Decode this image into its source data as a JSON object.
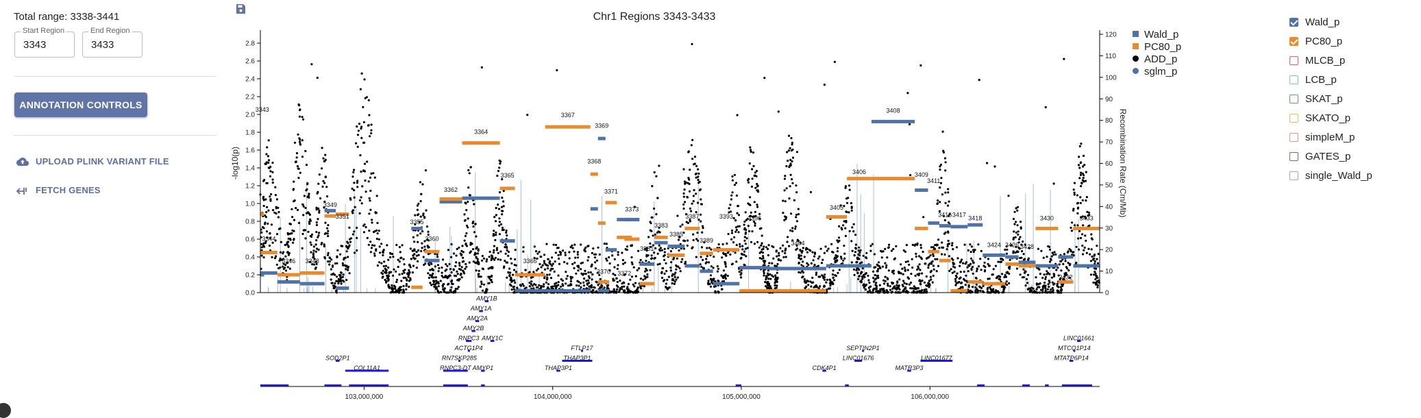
{
  "left_panel": {
    "range_text": "Total range: 3338-3441",
    "start_region": {
      "label": "Start Region",
      "value": "3343"
    },
    "end_region": {
      "label": "End Region",
      "value": "3433"
    },
    "annotation_button": "ANNOTATION CONTROLS",
    "upload_button": "UPLOAD PLINK VARIANT FILE",
    "fetch_button": "FETCH GENES"
  },
  "checklist": [
    {
      "label": "Wald_p",
      "checked": true,
      "color": "#4e73a8"
    },
    {
      "label": "PC80_p",
      "checked": true,
      "color": "#e98a2e"
    },
    {
      "label": "MLCB_p",
      "checked": false,
      "color": "#e06666"
    },
    {
      "label": "LCB_p",
      "checked": false,
      "color": "#76c7c0"
    },
    {
      "label": "SKAT_p",
      "checked": false,
      "color": "#5aa85a"
    },
    {
      "label": "SKATO_p",
      "checked": false,
      "color": "#e0c44a"
    },
    {
      "label": "simpleM_p",
      "checked": false,
      "color": "#d99a9a"
    },
    {
      "label": "GATES_p",
      "checked": false,
      "color": "#8a6a4a"
    },
    {
      "label": "single_Wald_p",
      "checked": false,
      "color": "#aaaaaa"
    }
  ],
  "chart_data": {
    "type": "scatter",
    "title": "Chr1 Regions 3343-3433",
    "ylabel": "-log10(p)",
    "y2label": "Recombination Rate (Cm/Mb)",
    "ylim": [
      0,
      2.9
    ],
    "y2lim": [
      0,
      120
    ],
    "xlim": [
      102450000,
      106900000
    ],
    "yticks": [
      "0.0",
      "0.2",
      "0.4",
      "0.6",
      "0.8",
      "1.0",
      "1.2",
      "1.4",
      "1.6",
      "1.8",
      "2.0",
      "2.2",
      "2.4",
      "2.6",
      "2.8"
    ],
    "y2ticks": [
      "0",
      "10",
      "20",
      "30",
      "40",
      "50",
      "60",
      "70",
      "80",
      "90",
      "100",
      "110",
      "120"
    ],
    "xticks": [
      {
        "pos": 103000000,
        "label": "103,000,000"
      },
      {
        "pos": 104000000,
        "label": "104,000,000"
      },
      {
        "pos": 105000000,
        "label": "105,000,000"
      },
      {
        "pos": 106000000,
        "label": "106,000,000"
      }
    ],
    "legend": [
      {
        "name": "Wald_p",
        "color": "#4e73a8",
        "shape": "square"
      },
      {
        "name": "PC80_p",
        "color": "#e98a2e",
        "shape": "square"
      },
      {
        "name": "ADD_p",
        "color": "#000000",
        "shape": "circle"
      },
      {
        "name": "sglm_p",
        "color": "#4e73a8",
        "shape": "circle"
      }
    ],
    "regions": [
      {
        "id": "3343",
        "start": 102450000,
        "end": 102470000,
        "wald": 0.2,
        "pc80": 0.88,
        "label_y": 2.0
      },
      {
        "id": "3344",
        "start": 102450000,
        "end": 102540000,
        "wald": 0.22,
        "pc80": 0.45,
        "label_y": 0.55
      },
      {
        "id": "3346",
        "start": 102540000,
        "end": 102660000,
        "wald": 0.12,
        "pc80": 0.2,
        "label_y": 0.3
      },
      {
        "id": "3348",
        "start": 102660000,
        "end": 102790000,
        "wald": 0.1,
        "pc80": 0.22,
        "label_y": 0.3
      },
      {
        "id": "3349",
        "start": 102790000,
        "end": 102850000,
        "wald": 0.92,
        "pc80": 0.86,
        "label_y": 0.93
      },
      {
        "id": "3351",
        "start": 102850000,
        "end": 102920000,
        "wald": 0.05,
        "pc80": 0.88,
        "label_y": 0.8
      },
      {
        "id": "3355",
        "start": 103250000,
        "end": 103310000,
        "wald": 0.72,
        "pc80": 0.06,
        "label_y": 0.74
      },
      {
        "id": "3360",
        "start": 103320000,
        "end": 103400000,
        "wald": 0.36,
        "pc80": 0.46,
        "label_y": 0.55
      },
      {
        "id": "3362",
        "start": 103400000,
        "end": 103520000,
        "wald": 1.02,
        "pc80": 1.05,
        "label_y": 1.1
      },
      {
        "id": "3364",
        "start": 103520000,
        "end": 103720000,
        "wald": 1.06,
        "pc80": 1.68,
        "label_y": 1.75
      },
      {
        "id": "3365",
        "start": 103720000,
        "end": 103800000,
        "wald": 0.58,
        "pc80": 1.17,
        "label_y": 1.26
      },
      {
        "id": "3366",
        "start": 103800000,
        "end": 103960000,
        "wald": 0.02,
        "pc80": 0.2,
        "label_y": 0.3
      },
      {
        "id": "3367",
        "start": 103960000,
        "end": 104200000,
        "wald": 0.02,
        "pc80": 1.86,
        "label_y": 1.94
      },
      {
        "id": "3368",
        "start": 104200000,
        "end": 104240000,
        "wald": 0.94,
        "pc80": 1.33,
        "label_y": 1.42
      },
      {
        "id": "3369",
        "start": 104240000,
        "end": 104280000,
        "wald": 1.73,
        "pc80": 0.78,
        "label_y": 1.82
      },
      {
        "id": "3370",
        "start": 104240000,
        "end": 104300000,
        "wald": 0.02,
        "pc80": 0.12,
        "label_y": 0.18
      },
      {
        "id": "3371",
        "start": 104280000,
        "end": 104340000,
        "wald": 0.48,
        "pc80": 1.01,
        "label_y": 1.08
      },
      {
        "id": "3372",
        "start": 104340000,
        "end": 104420000,
        "wald": 0.82,
        "pc80": 0.62,
        "label_y": 0.16
      },
      {
        "id": "3373",
        "start": 104380000,
        "end": 104460000,
        "wald": 0.82,
        "pc80": 0.6,
        "label_y": 0.88
      },
      {
        "id": "3381",
        "start": 104460000,
        "end": 104540000,
        "wald": 0.32,
        "pc80": 0.1,
        "label_y": 0.44
      },
      {
        "id": "3383",
        "start": 104540000,
        "end": 104610000,
        "wald": 0.56,
        "pc80": 0.62,
        "label_y": 0.7
      },
      {
        "id": "3385",
        "start": 104610000,
        "end": 104700000,
        "wald": 0.52,
        "pc80": 0.42,
        "label_y": 0.6
      },
      {
        "id": "3387",
        "start": 104700000,
        "end": 104780000,
        "wald": 0.3,
        "pc80": 0.72,
        "label_y": 0.8
      },
      {
        "id": "3389",
        "start": 104780000,
        "end": 104850000,
        "wald": 0.24,
        "pc80": 0.44,
        "label_y": 0.53
      },
      {
        "id": "3393",
        "start": 104850000,
        "end": 104990000,
        "wald": 0.1,
        "pc80": 0.48,
        "label_y": 0.8
      },
      {
        "id": "3396",
        "start": 104990000,
        "end": 105150000,
        "wald": 0.28,
        "pc80": 0.02,
        "label_y": 0.78
      },
      {
        "id": "3404",
        "start": 105150000,
        "end": 105450000,
        "wald": 0.27,
        "pc80": 0.02,
        "label_y": 0.5
      },
      {
        "id": "3405",
        "start": 105450000,
        "end": 105560000,
        "wald": 0.3,
        "pc80": 0.85,
        "label_y": 0.9
      },
      {
        "id": "3406",
        "start": 105560000,
        "end": 105690000,
        "wald": 0.3,
        "pc80": 1.28,
        "label_y": 1.3
      },
      {
        "id": "3408",
        "start": 105690000,
        "end": 105920000,
        "wald": 1.92,
        "pc80": 1.28,
        "label_y": 1.99
      },
      {
        "id": "3409",
        "start": 105920000,
        "end": 105990000,
        "wald": 1.15,
        "pc80": 0.72,
        "label_y": 1.27
      },
      {
        "id": "3411",
        "start": 105990000,
        "end": 106050000,
        "wald": 0.78,
        "pc80": 0.46,
        "label_y": 1.2
      },
      {
        "id": "3416",
        "start": 106050000,
        "end": 106110000,
        "wald": 0.75,
        "pc80": 0.36,
        "label_y": 0.82
      },
      {
        "id": "3417",
        "start": 106110000,
        "end": 106200000,
        "wald": 0.74,
        "pc80": 0.02,
        "label_y": 0.82
      },
      {
        "id": "3418",
        "start": 106200000,
        "end": 106280000,
        "wald": 0.76,
        "pc80": 0.12,
        "label_y": 0.78
      },
      {
        "id": "3424",
        "start": 106280000,
        "end": 106400000,
        "wald": 0.42,
        "pc80": 0.1,
        "label_y": 0.48
      },
      {
        "id": "3426",
        "start": 106400000,
        "end": 106470000,
        "wald": 0.4,
        "pc80": 0.32,
        "label_y": 0.48
      },
      {
        "id": "3428",
        "start": 106470000,
        "end": 106560000,
        "wald": 0.34,
        "pc80": 0.3,
        "label_y": 0.46
      },
      {
        "id": "3430",
        "start": 106560000,
        "end": 106680000,
        "wald": 0.3,
        "pc80": 0.72,
        "label_y": 0.78
      },
      {
        "id": "3432",
        "start": 106680000,
        "end": 106760000,
        "wald": 0.4,
        "pc80": 0.12,
        "label_y": 0.12
      },
      {
        "id": "3433",
        "start": 106760000,
        "end": 106900000,
        "wald": 0.3,
        "pc80": 0.72,
        "label_y": 0.78
      }
    ],
    "peaks": [
      {
        "center": 102500000,
        "width": 60000,
        "height": 1.6
      },
      {
        "center": 102660000,
        "width": 60000,
        "height": 2.0
      },
      {
        "center": 102780000,
        "width": 40000,
        "height": 1.7
      },
      {
        "center": 103000000,
        "width": 80000,
        "height": 2.2
      },
      {
        "center": 103300000,
        "width": 50000,
        "height": 1.2
      },
      {
        "center": 103560000,
        "width": 40000,
        "height": 1.35
      },
      {
        "center": 103720000,
        "width": 40000,
        "height": 1.35
      },
      {
        "center": 104540000,
        "width": 40000,
        "height": 1.3
      },
      {
        "center": 104740000,
        "width": 70000,
        "height": 1.6
      },
      {
        "center": 104960000,
        "width": 40000,
        "height": 1.3
      },
      {
        "center": 105060000,
        "width": 50000,
        "height": 1.6
      },
      {
        "center": 105260000,
        "width": 50000,
        "height": 1.8
      },
      {
        "center": 105560000,
        "width": 60000,
        "height": 1.2
      },
      {
        "center": 106070000,
        "width": 50000,
        "height": 1.5
      },
      {
        "center": 106460000,
        "width": 40000,
        "height": 1.0
      },
      {
        "center": 106800000,
        "width": 60000,
        "height": 1.55
      }
    ],
    "genes": [
      {
        "name": "AMY1B",
        "start": 103640000,
        "end": 103660000,
        "row": 0
      },
      {
        "name": "AMY1A",
        "start": 103610000,
        "end": 103630000,
        "row": 1
      },
      {
        "name": "AMY2A",
        "start": 103590000,
        "end": 103610000,
        "row": 2
      },
      {
        "name": "AMY2B",
        "start": 103570000,
        "end": 103590000,
        "row": 3
      },
      {
        "name": "RNPC3",
        "start": 103540000,
        "end": 103570000,
        "row": 4
      },
      {
        "name": "AMY1C",
        "start": 103670000,
        "end": 103690000,
        "row": 4
      },
      {
        "name": "ACTG1P4",
        "start": 103550000,
        "end": 103560000,
        "row": 5
      },
      {
        "name": "FTLP17",
        "start": 104150000,
        "end": 104160000,
        "row": 5
      },
      {
        "name": "SEPTIN2P1",
        "start": 105640000,
        "end": 105650000,
        "row": 5
      },
      {
        "name": "LINC01661",
        "start": 106780000,
        "end": 106800000,
        "row": 4
      },
      {
        "name": "MTCO1P14",
        "start": 106760000,
        "end": 106770000,
        "row": 5
      },
      {
        "name": "SOD2P1",
        "start": 102850000,
        "end": 102870000,
        "row": 6
      },
      {
        "name": "RN7SKP285",
        "start": 103500000,
        "end": 103510000,
        "row": 6
      },
      {
        "name": "THAP3P1",
        "start": 104050000,
        "end": 104210000,
        "row": 6
      },
      {
        "name": "LINC01676",
        "start": 105600000,
        "end": 105640000,
        "row": 6
      },
      {
        "name": "LINC01677",
        "start": 105950000,
        "end": 106120000,
        "row": 6
      },
      {
        "name": "MTATP6P14",
        "start": 106740000,
        "end": 106760000,
        "row": 6
      },
      {
        "name": "COL11A1",
        "start": 102900000,
        "end": 103130000,
        "row": 7
      },
      {
        "name": "RNPC3-DT",
        "start": 103420000,
        "end": 103550000,
        "row": 7
      },
      {
        "name": "AMYP1",
        "start": 103620000,
        "end": 103640000,
        "row": 7
      },
      {
        "name": "THAP3P1",
        "start": 104020000,
        "end": 104040000,
        "row": 7
      },
      {
        "name": "CDK4P1",
        "start": 105430000,
        "end": 105450000,
        "row": 7
      },
      {
        "name": "MATR3P3",
        "start": 105880000,
        "end": 105900000,
        "row": 7
      }
    ],
    "gene_track_blocks": [
      {
        "start": 102450000,
        "end": 102600000
      },
      {
        "start": 102790000,
        "end": 102880000
      },
      {
        "start": 102920000,
        "end": 103130000
      },
      {
        "start": 103420000,
        "end": 103550000
      },
      {
        "start": 103620000,
        "end": 103640000
      },
      {
        "start": 104970000,
        "end": 105000000
      },
      {
        "start": 105550000,
        "end": 105570000
      },
      {
        "start": 106250000,
        "end": 106290000
      },
      {
        "start": 106490000,
        "end": 106530000
      },
      {
        "start": 106610000,
        "end": 106630000
      },
      {
        "start": 106700000,
        "end": 106860000
      }
    ]
  }
}
